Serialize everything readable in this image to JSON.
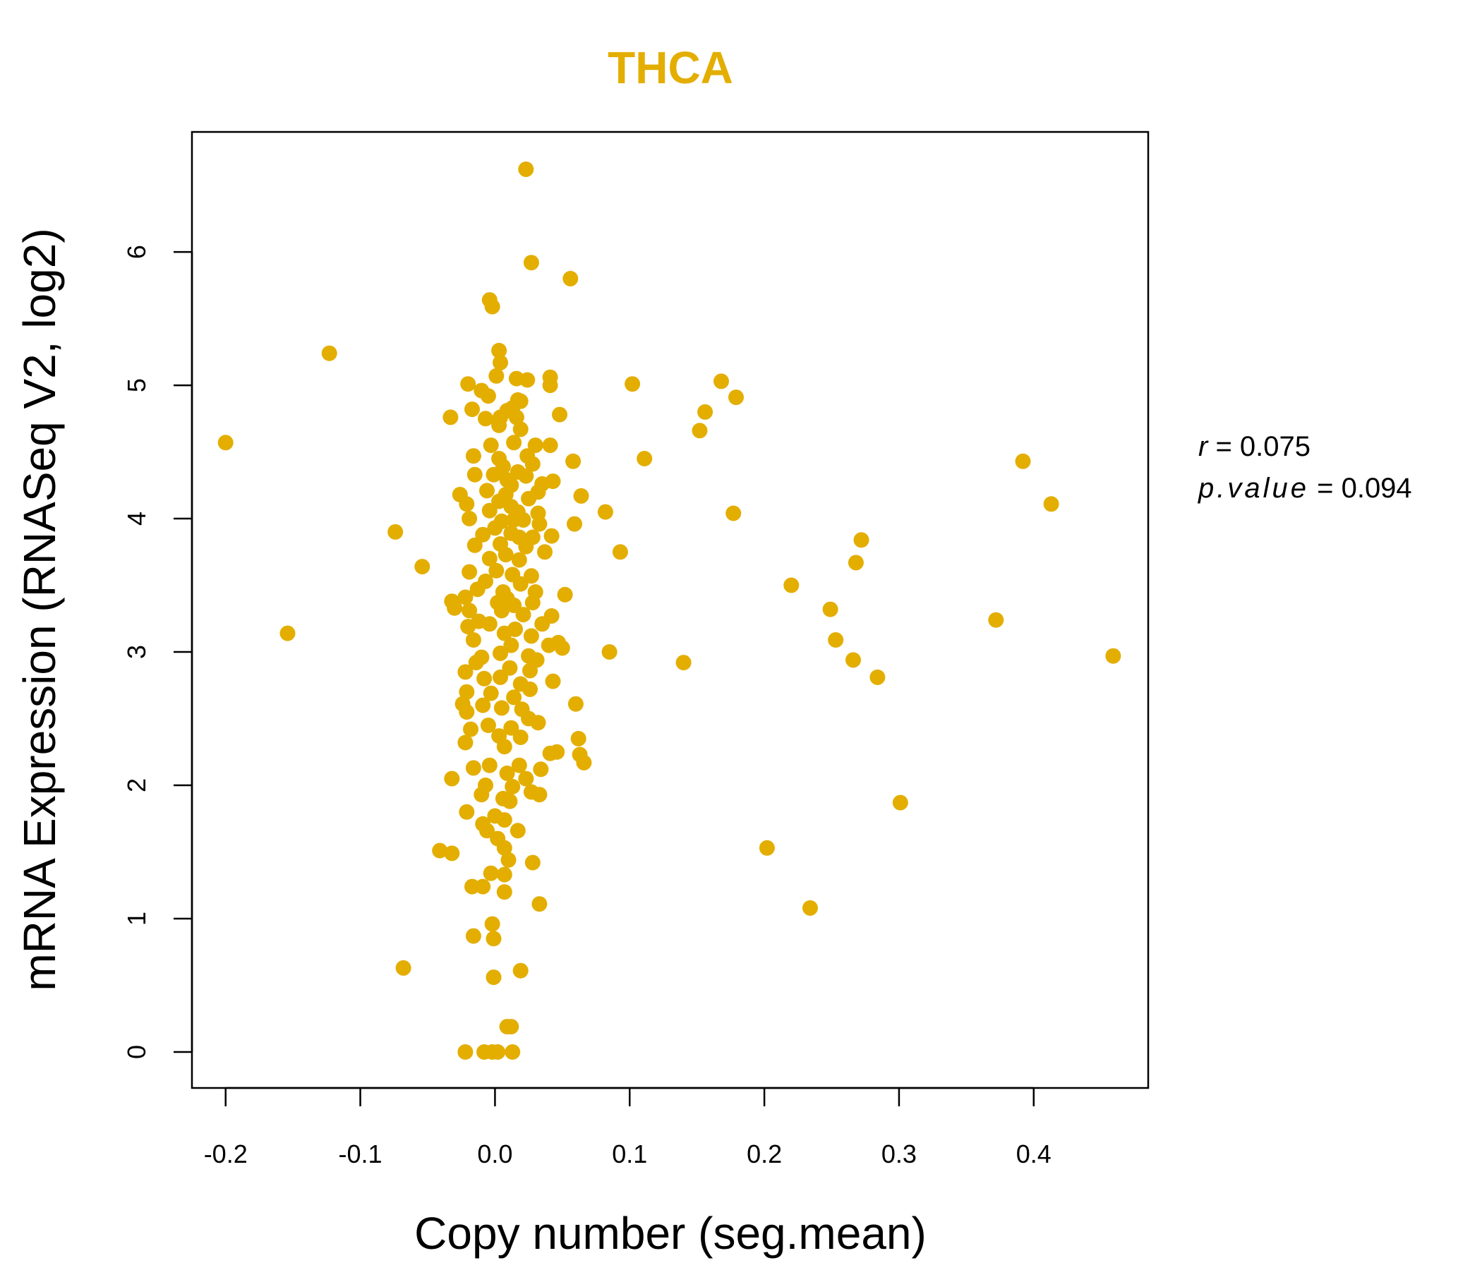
{
  "colors": {
    "accent": "#E3AE00",
    "axis": "#000000",
    "background": "#FFFFFF"
  },
  "chart_data": {
    "type": "scatter",
    "title": "THCA",
    "xlabel": "Copy number (seg.mean)",
    "ylabel": "mRNA Expression (RNASeq V2, log2)",
    "xlim": [
      -0.225,
      0.485
    ],
    "ylim": [
      -0.27,
      6.9
    ],
    "xticks": [
      -0.2,
      -0.1,
      0.0,
      0.1,
      0.2,
      0.3,
      0.4
    ],
    "xtick_labels": [
      "-0.2",
      "-0.1",
      "0.0",
      "0.1",
      "0.2",
      "0.3",
      "0.4"
    ],
    "yticks": [
      0,
      1,
      2,
      3,
      4,
      5,
      6
    ],
    "ytick_labels": [
      "0",
      "1",
      "2",
      "3",
      "4",
      "5",
      "6"
    ],
    "grid": false,
    "stats": {
      "r_label": "r",
      "r_value": "0.075",
      "p_label": "p.value",
      "p_value": "0.094"
    },
    "points": [
      [
        0.023,
        6.62
      ],
      [
        0.027,
        5.92
      ],
      [
        0.056,
        5.8
      ],
      [
        -0.004,
        5.64
      ],
      [
        -0.002,
        5.59
      ],
      [
        -0.123,
        5.24
      ],
      [
        0.003,
        5.26
      ],
      [
        0.004,
        5.17
      ],
      [
        0.001,
        5.07
      ],
      [
        0.016,
        5.05
      ],
      [
        0.024,
        5.04
      ],
      [
        0.041,
        5.06
      ],
      [
        0.041,
        5.0
      ],
      [
        0.102,
        5.01
      ],
      [
        0.168,
        5.03
      ],
      [
        0.179,
        4.91
      ],
      [
        -0.02,
        5.01
      ],
      [
        -0.01,
        4.96
      ],
      [
        -0.005,
        4.92
      ],
      [
        0.019,
        4.88
      ],
      [
        0.017,
        4.89
      ],
      [
        -0.017,
        4.82
      ],
      [
        0.009,
        4.81
      ],
      [
        0.004,
        4.76
      ],
      [
        -0.007,
        4.75
      ],
      [
        -0.033,
        4.76
      ],
      [
        0.013,
        4.83
      ],
      [
        0.048,
        4.78
      ],
      [
        0.156,
        4.8
      ],
      [
        0.152,
        4.66
      ],
      [
        0.016,
        4.76
      ],
      [
        0.019,
        4.67
      ],
      [
        0.003,
        4.7
      ],
      [
        -0.2,
        4.57
      ],
      [
        -0.003,
        4.55
      ],
      [
        0.014,
        4.57
      ],
      [
        0.03,
        4.55
      ],
      [
        0.041,
        4.55
      ],
      [
        0.024,
        4.47
      ],
      [
        -0.016,
        4.47
      ],
      [
        0.003,
        4.45
      ],
      [
        0.058,
        4.43
      ],
      [
        0.111,
        4.45
      ],
      [
        0.392,
        4.43
      ],
      [
        0.028,
        4.41
      ],
      [
        0.006,
        4.39
      ],
      [
        0.017,
        4.35
      ],
      [
        -0.001,
        4.33
      ],
      [
        -0.015,
        4.33
      ],
      [
        0.023,
        4.32
      ],
      [
        0.009,
        4.29
      ],
      [
        0.043,
        4.28
      ],
      [
        0.035,
        4.26
      ],
      [
        0.012,
        4.25
      ],
      [
        -0.006,
        4.21
      ],
      [
        -0.026,
        4.18
      ],
      [
        0.008,
        4.18
      ],
      [
        0.032,
        4.2
      ],
      [
        0.064,
        4.17
      ],
      [
        0.025,
        4.15
      ],
      [
        0.003,
        4.13
      ],
      [
        -0.021,
        4.11
      ],
      [
        0.413,
        4.11
      ],
      [
        0.012,
        4.09
      ],
      [
        -0.004,
        4.06
      ],
      [
        0.017,
        4.05
      ],
      [
        0.032,
        4.04
      ],
      [
        0.082,
        4.05
      ],
      [
        0.177,
        4.04
      ],
      [
        -0.019,
        4.0
      ],
      [
        0.005,
        3.98
      ],
      [
        0.014,
        3.99
      ],
      [
        0.021,
        3.99
      ],
      [
        0.059,
        3.96
      ],
      [
        0.033,
        3.96
      ],
      [
        0.0,
        3.93
      ],
      [
        -0.074,
        3.9
      ],
      [
        -0.009,
        3.88
      ],
      [
        0.012,
        3.89
      ],
      [
        0.018,
        3.86
      ],
      [
        0.028,
        3.86
      ],
      [
        0.042,
        3.87
      ],
      [
        0.272,
        3.84
      ],
      [
        -0.015,
        3.8
      ],
      [
        0.004,
        3.81
      ],
      [
        0.023,
        3.79
      ],
      [
        0.037,
        3.75
      ],
      [
        0.093,
        3.75
      ],
      [
        0.008,
        3.73
      ],
      [
        -0.004,
        3.7
      ],
      [
        0.018,
        3.69
      ],
      [
        0.268,
        3.67
      ],
      [
        -0.054,
        3.64
      ],
      [
        -0.019,
        3.6
      ],
      [
        0.001,
        3.61
      ],
      [
        0.013,
        3.58
      ],
      [
        0.027,
        3.57
      ],
      [
        0.22,
        3.5
      ],
      [
        -0.007,
        3.53
      ],
      [
        0.019,
        3.51
      ],
      [
        -0.013,
        3.47
      ],
      [
        0.006,
        3.45
      ],
      [
        0.03,
        3.45
      ],
      [
        0.052,
        3.43
      ],
      [
        -0.022,
        3.41
      ],
      [
        0.009,
        3.4
      ],
      [
        -0.032,
        3.38
      ],
      [
        0.002,
        3.37
      ],
      [
        0.028,
        3.37
      ],
      [
        0.014,
        3.35
      ],
      [
        -0.03,
        3.33
      ],
      [
        0.249,
        3.32
      ],
      [
        -0.019,
        3.31
      ],
      [
        0.005,
        3.31
      ],
      [
        0.021,
        3.28
      ],
      [
        0.042,
        3.27
      ],
      [
        -0.012,
        3.23
      ],
      [
        0.372,
        3.24
      ],
      [
        -0.004,
        3.21
      ],
      [
        0.035,
        3.21
      ],
      [
        0.015,
        3.17
      ],
      [
        -0.02,
        3.19
      ],
      [
        -0.154,
        3.14
      ],
      [
        0.007,
        3.14
      ],
      [
        0.027,
        3.12
      ],
      [
        0.253,
        3.09
      ],
      [
        -0.016,
        3.09
      ],
      [
        0.047,
        3.07
      ],
      [
        0.012,
        3.05
      ],
      [
        0.04,
        3.05
      ],
      [
        0.05,
        3.03
      ],
      [
        0.085,
        3.0
      ],
      [
        0.004,
        2.99
      ],
      [
        -0.01,
        2.96
      ],
      [
        0.025,
        2.97
      ],
      [
        0.459,
        2.97
      ],
      [
        0.266,
        2.94
      ],
      [
        0.031,
        2.94
      ],
      [
        0.14,
        2.92
      ],
      [
        -0.014,
        2.92
      ],
      [
        0.011,
        2.88
      ],
      [
        -0.022,
        2.85
      ],
      [
        0.026,
        2.86
      ],
      [
        0.284,
        2.81
      ],
      [
        0.004,
        2.81
      ],
      [
        -0.008,
        2.8
      ],
      [
        0.043,
        2.78
      ],
      [
        0.019,
        2.76
      ],
      [
        0.026,
        2.72
      ],
      [
        -0.021,
        2.7
      ],
      [
        -0.003,
        2.69
      ],
      [
        0.014,
        2.66
      ],
      [
        0.06,
        2.61
      ],
      [
        -0.024,
        2.61
      ],
      [
        -0.009,
        2.6
      ],
      [
        0.005,
        2.58
      ],
      [
        0.02,
        2.57
      ],
      [
        -0.021,
        2.55
      ],
      [
        0.025,
        2.5
      ],
      [
        0.032,
        2.47
      ],
      [
        -0.005,
        2.45
      ],
      [
        0.012,
        2.43
      ],
      [
        -0.018,
        2.42
      ],
      [
        0.003,
        2.37
      ],
      [
        0.019,
        2.36
      ],
      [
        0.062,
        2.35
      ],
      [
        -0.022,
        2.32
      ],
      [
        0.007,
        2.29
      ],
      [
        0.046,
        2.25
      ],
      [
        0.041,
        2.24
      ],
      [
        0.063,
        2.23
      ],
      [
        0.066,
        2.17
      ],
      [
        -0.016,
        2.13
      ],
      [
        -0.004,
        2.15
      ],
      [
        0.018,
        2.15
      ],
      [
        0.034,
        2.12
      ],
      [
        0.009,
        2.09
      ],
      [
        0.023,
        2.05
      ],
      [
        -0.032,
        2.05
      ],
      [
        -0.007,
        2.0
      ],
      [
        0.013,
        1.99
      ],
      [
        0.027,
        1.95
      ],
      [
        0.033,
        1.93
      ],
      [
        -0.01,
        1.93
      ],
      [
        0.006,
        1.9
      ],
      [
        0.011,
        1.88
      ],
      [
        0.301,
        1.87
      ],
      [
        -0.021,
        1.8
      ],
      [
        0.0,
        1.77
      ],
      [
        0.007,
        1.74
      ],
      [
        -0.009,
        1.71
      ],
      [
        0.017,
        1.66
      ],
      [
        -0.006,
        1.66
      ],
      [
        0.002,
        1.6
      ],
      [
        0.007,
        1.53
      ],
      [
        0.202,
        1.53
      ],
      [
        -0.041,
        1.51
      ],
      [
        -0.032,
        1.49
      ],
      [
        0.01,
        1.44
      ],
      [
        0.028,
        1.42
      ],
      [
        -0.003,
        1.34
      ],
      [
        0.007,
        1.33
      ],
      [
        -0.017,
        1.24
      ],
      [
        -0.009,
        1.24
      ],
      [
        0.007,
        1.2
      ],
      [
        0.033,
        1.11
      ],
      [
        0.234,
        1.08
      ],
      [
        -0.002,
        0.96
      ],
      [
        -0.016,
        0.87
      ],
      [
        -0.001,
        0.85
      ],
      [
        -0.068,
        0.63
      ],
      [
        0.019,
        0.61
      ],
      [
        -0.001,
        0.56
      ],
      [
        0.009,
        0.19
      ],
      [
        0.012,
        0.19
      ],
      [
        -0.022,
        0.0
      ],
      [
        -0.008,
        0.0
      ],
      [
        -0.002,
        0.0
      ],
      [
        0.002,
        0.0
      ],
      [
        0.013,
        0.0
      ]
    ]
  }
}
